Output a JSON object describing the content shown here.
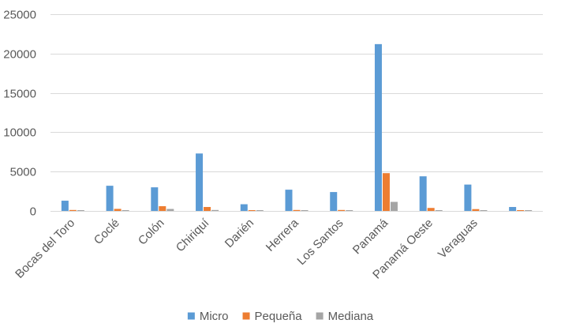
{
  "chart_data": {
    "type": "bar",
    "categories": [
      "Bocas del Toro",
      "Coclé",
      "Colón",
      "Chiriquí",
      "Darién",
      "Herrera",
      "Los Santos",
      "Panamá",
      "Panamá Oeste",
      "Veraguas",
      ""
    ],
    "series": [
      {
        "name": "Micro",
        "color": "#5b9bd5",
        "values": [
          1300,
          3200,
          3000,
          7300,
          850,
          2700,
          2400,
          21200,
          4400,
          3350,
          500
        ]
      },
      {
        "name": "Pequeña",
        "color": "#ed7d31",
        "values": [
          120,
          260,
          600,
          500,
          40,
          120,
          120,
          4800,
          380,
          230,
          30
        ]
      },
      {
        "name": "Mediana",
        "color": "#a5a5a5",
        "values": [
          30,
          40,
          250,
          120,
          10,
          40,
          30,
          1150,
          60,
          40,
          5
        ]
      }
    ],
    "y_ticks": [
      "0",
      "5000",
      "10000",
      "15000",
      "20000",
      "25000"
    ],
    "ylim": [
      0,
      25000
    ],
    "grid": true,
    "legend_position": "bottom"
  }
}
